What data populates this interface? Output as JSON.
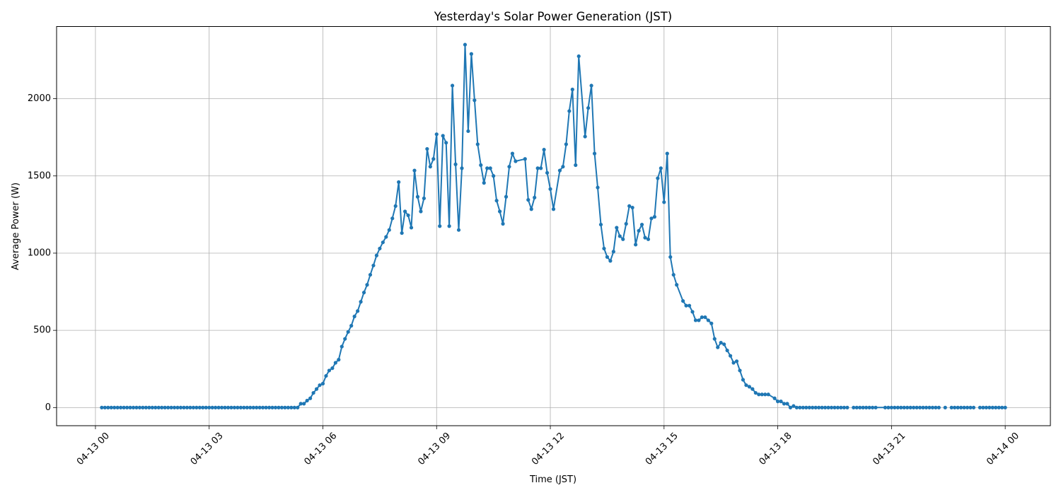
{
  "chart_data": {
    "type": "line",
    "title": "Yesterday's Solar Power Generation (JST)",
    "xlabel": "Time (JST)",
    "ylabel": "Average Power (W)",
    "x_tick_labels": [
      "04-13 00",
      "04-13 03",
      "04-13 06",
      "04-13 09",
      "04-13 12",
      "04-13 15",
      "04-13 18",
      "04-13 21",
      "04-14 00"
    ],
    "x_tick_hours": [
      0,
      3,
      6,
      9,
      12,
      15,
      18,
      21,
      24
    ],
    "y_ticks": [
      0,
      500,
      1000,
      1500,
      2000
    ],
    "ylim": [
      -117.5,
      2467.5
    ],
    "grid": true,
    "marker": "circle",
    "color": "#1f77b4",
    "series": [
      {
        "points": [
          [
            "00:10",
            0
          ],
          [
            "00:15",
            0
          ],
          [
            "00:20",
            0
          ],
          [
            "00:25",
            0
          ],
          [
            "00:30",
            0
          ],
          [
            "00:35",
            0
          ],
          [
            "00:40",
            0
          ],
          [
            "00:45",
            0
          ],
          [
            "00:50",
            0
          ],
          [
            "00:55",
            0
          ],
          [
            "01:00",
            0
          ],
          [
            "01:05",
            0
          ],
          [
            "01:10",
            0
          ],
          [
            "01:15",
            0
          ],
          [
            "01:20",
            0
          ],
          [
            "01:25",
            0
          ],
          [
            "01:30",
            0
          ],
          [
            "01:35",
            0
          ],
          [
            "01:40",
            0
          ],
          [
            "01:45",
            0
          ],
          [
            "01:50",
            0
          ],
          [
            "01:55",
            0
          ],
          [
            "02:00",
            0
          ],
          [
            "02:05",
            0
          ],
          [
            "02:10",
            0
          ],
          [
            "02:15",
            0
          ],
          [
            "02:20",
            0
          ],
          [
            "02:25",
            0
          ],
          [
            "02:30",
            0
          ],
          [
            "02:35",
            0
          ],
          [
            "02:40",
            0
          ],
          [
            "02:45",
            0
          ],
          [
            "02:50",
            0
          ],
          [
            "02:55",
            0
          ],
          [
            "03:00",
            0
          ],
          [
            "03:05",
            0
          ],
          [
            "03:10",
            0
          ],
          [
            "03:15",
            0
          ],
          [
            "03:20",
            0
          ],
          [
            "03:25",
            0
          ],
          [
            "03:30",
            0
          ],
          [
            "03:35",
            0
          ],
          [
            "03:40",
            0
          ],
          [
            "03:45",
            0
          ],
          [
            "03:50",
            0
          ],
          [
            "03:55",
            0
          ],
          [
            "04:00",
            0
          ],
          [
            "04:05",
            0
          ],
          [
            "04:10",
            0
          ],
          [
            "04:15",
            0
          ],
          [
            "04:20",
            0
          ],
          [
            "04:25",
            0
          ],
          [
            "04:30",
            0
          ],
          [
            "04:35",
            0
          ],
          [
            "04:40",
            0
          ],
          [
            "04:45",
            0
          ],
          [
            "04:50",
            0
          ],
          [
            "04:55",
            0
          ],
          [
            "05:00",
            0
          ],
          [
            "05:05",
            0
          ],
          [
            "05:10",
            0
          ],
          [
            "05:15",
            0
          ],
          [
            "05:20",
            0
          ],
          [
            "05:25",
            25
          ],
          [
            "05:30",
            25
          ],
          [
            "05:35",
            45
          ],
          [
            "05:40",
            60
          ],
          [
            "05:45",
            95
          ],
          [
            "05:50",
            120
          ],
          [
            "05:55",
            145
          ],
          [
            "06:00",
            155
          ],
          [
            "06:05",
            205
          ],
          [
            "06:10",
            240
          ],
          [
            "06:15",
            255
          ],
          [
            "06:20",
            290
          ],
          [
            "06:25",
            310
          ],
          [
            "06:30",
            395
          ],
          [
            "06:35",
            445
          ],
          [
            "06:40",
            490
          ],
          [
            "06:45",
            530
          ],
          [
            "06:50",
            590
          ],
          [
            "06:55",
            625
          ],
          [
            "07:00",
            685
          ],
          [
            "07:05",
            745
          ],
          [
            "07:10",
            795
          ],
          [
            "07:15",
            860
          ],
          [
            "07:20",
            920
          ],
          [
            "07:25",
            985
          ],
          [
            "07:30",
            1030
          ],
          [
            "07:35",
            1070
          ],
          [
            "07:40",
            1105
          ],
          [
            "07:45",
            1150
          ],
          [
            "07:50",
            1225
          ],
          [
            "07:55",
            1305
          ],
          [
            "08:00",
            1460
          ],
          [
            "08:05",
            1130
          ],
          [
            "08:10",
            1270
          ],
          [
            "08:15",
            1245
          ],
          [
            "08:20",
            1165
          ],
          [
            "08:25",
            1535
          ],
          [
            "08:30",
            1365
          ],
          [
            "08:35",
            1270
          ],
          [
            "08:40",
            1355
          ],
          [
            "08:45",
            1675
          ],
          [
            "08:50",
            1560
          ],
          [
            "08:55",
            1610
          ],
          [
            "09:00",
            1770
          ],
          [
            "09:05",
            1175
          ],
          [
            "09:10",
            1760
          ],
          [
            "09:15",
            1715
          ],
          [
            "09:20",
            1175
          ],
          [
            "09:25",
            2085
          ],
          [
            "09:30",
            1575
          ],
          [
            "09:35",
            1150
          ],
          [
            "09:40",
            1550
          ],
          [
            "09:45",
            2350
          ],
          [
            "09:50",
            1790
          ],
          [
            "09:55",
            2290
          ],
          [
            "10:00",
            1990
          ],
          [
            "10:05",
            1705
          ],
          [
            "10:10",
            1570
          ],
          [
            "10:15",
            1455
          ],
          [
            "10:20",
            1550
          ],
          [
            "10:25",
            1550
          ],
          [
            "10:30",
            1500
          ],
          [
            "10:35",
            1340
          ],
          [
            "10:40",
            1270
          ],
          [
            "10:45",
            1190
          ],
          [
            "10:50",
            1365
          ],
          [
            "10:55",
            1560
          ],
          [
            "11:00",
            1645
          ],
          [
            "11:05",
            1595
          ],
          [
            "11:20",
            1610
          ],
          [
            "11:25",
            1345
          ],
          [
            "11:30",
            1285
          ],
          [
            "11:35",
            1360
          ],
          [
            "11:40",
            1550
          ],
          [
            "11:45",
            1550
          ],
          [
            "11:50",
            1670
          ],
          [
            "11:55",
            1520
          ],
          [
            "12:00",
            1415
          ],
          [
            "12:05",
            1285
          ],
          [
            "12:15",
            1535
          ],
          [
            "12:20",
            1560
          ],
          [
            "12:25",
            1705
          ],
          [
            "12:30",
            1920
          ],
          [
            "12:35",
            2060
          ],
          [
            "12:40",
            1570
          ],
          [
            "12:45",
            2275
          ],
          [
            "12:55",
            1755
          ],
          [
            "13:00",
            1940
          ],
          [
            "13:05",
            2085
          ],
          [
            "13:10",
            1645
          ],
          [
            "13:15",
            1425
          ],
          [
            "13:20",
            1185
          ],
          [
            "13:25",
            1030
          ],
          [
            "13:30",
            975
          ],
          [
            "13:35",
            950
          ],
          [
            "13:40",
            1010
          ],
          [
            "13:45",
            1165
          ],
          [
            "13:50",
            1110
          ],
          [
            "13:55",
            1090
          ],
          [
            "14:00",
            1190
          ],
          [
            "14:05",
            1305
          ],
          [
            "14:10",
            1295
          ],
          [
            "14:15",
            1055
          ],
          [
            "14:20",
            1145
          ],
          [
            "14:25",
            1185
          ],
          [
            "14:30",
            1100
          ],
          [
            "14:35",
            1090
          ],
          [
            "14:40",
            1225
          ],
          [
            "14:45",
            1235
          ],
          [
            "14:50",
            1485
          ],
          [
            "14:55",
            1550
          ],
          [
            "15:00",
            1330
          ],
          [
            "15:05",
            1645
          ],
          [
            "15:10",
            975
          ],
          [
            "15:15",
            860
          ],
          [
            "15:20",
            795
          ],
          [
            "15:30",
            690
          ],
          [
            "15:35",
            660
          ],
          [
            "15:40",
            660
          ],
          [
            "15:45",
            620
          ],
          [
            "15:50",
            565
          ],
          [
            "15:55",
            565
          ],
          [
            "16:00",
            585
          ],
          [
            "16:05",
            585
          ],
          [
            "16:10",
            565
          ],
          [
            "16:15",
            545
          ],
          [
            "16:20",
            445
          ],
          [
            "16:25",
            390
          ],
          [
            "16:30",
            420
          ],
          [
            "16:35",
            410
          ],
          [
            "16:40",
            370
          ],
          [
            "16:45",
            335
          ],
          [
            "16:50",
            290
          ],
          [
            "16:55",
            300
          ],
          [
            "17:00",
            240
          ],
          [
            "17:05",
            180
          ],
          [
            "17:10",
            145
          ],
          [
            "17:15",
            135
          ],
          [
            "17:20",
            120
          ],
          [
            "17:25",
            95
          ],
          [
            "17:30",
            85
          ],
          [
            "17:35",
            85
          ],
          [
            "17:40",
            85
          ],
          [
            "17:45",
            85
          ],
          [
            "17:55",
            60
          ],
          [
            "18:00",
            40
          ],
          [
            "18:05",
            40
          ],
          [
            "18:10",
            25
          ],
          [
            "18:15",
            25
          ],
          [
            "18:20",
            0
          ],
          [
            "18:25",
            10
          ],
          [
            "18:30",
            0
          ],
          [
            "18:35",
            0
          ],
          [
            "18:40",
            0
          ],
          [
            "18:45",
            0
          ],
          [
            "18:50",
            0
          ],
          [
            "18:55",
            0
          ],
          [
            "19:00",
            0
          ],
          [
            "19:05",
            0
          ],
          [
            "19:10",
            0
          ],
          [
            "19:15",
            0
          ],
          [
            "19:20",
            0
          ],
          [
            "19:25",
            0
          ],
          [
            "19:30",
            0
          ],
          [
            "19:35",
            0
          ],
          [
            "19:40",
            0
          ],
          [
            "19:45",
            0
          ],
          [
            "19:50",
            0
          ],
          [
            "19:55",
            null
          ],
          [
            "20:00",
            0
          ],
          [
            "20:05",
            0
          ],
          [
            "20:10",
            0
          ],
          [
            "20:15",
            0
          ],
          [
            "20:20",
            0
          ],
          [
            "20:25",
            0
          ],
          [
            "20:30",
            0
          ],
          [
            "20:35",
            0
          ],
          [
            "20:50",
            0
          ],
          [
            "20:55",
            0
          ],
          [
            "21:00",
            0
          ],
          [
            "21:05",
            0
          ],
          [
            "21:10",
            0
          ],
          [
            "21:15",
            0
          ],
          [
            "21:20",
            0
          ],
          [
            "21:25",
            0
          ],
          [
            "21:30",
            0
          ],
          [
            "21:35",
            0
          ],
          [
            "21:40",
            0
          ],
          [
            "21:45",
            0
          ],
          [
            "21:50",
            0
          ],
          [
            "21:55",
            0
          ],
          [
            "22:00",
            0
          ],
          [
            "22:05",
            0
          ],
          [
            "22:10",
            0
          ],
          [
            "22:15",
            0
          ],
          [
            "22:20",
            null
          ],
          [
            "22:25",
            0
          ],
          [
            "22:30",
            null
          ],
          [
            "22:35",
            0
          ],
          [
            "22:40",
            0
          ],
          [
            "22:45",
            0
          ],
          [
            "22:50",
            0
          ],
          [
            "22:55",
            0
          ],
          [
            "23:00",
            0
          ],
          [
            "23:05",
            0
          ],
          [
            "23:10",
            0
          ],
          [
            "23:15",
            null
          ],
          [
            "23:20",
            0
          ],
          [
            "23:25",
            0
          ],
          [
            "23:30",
            0
          ],
          [
            "23:35",
            0
          ],
          [
            "23:40",
            0
          ],
          [
            "23:45",
            0
          ],
          [
            "23:50",
            0
          ],
          [
            "23:55",
            0
          ],
          [
            "24:00",
            0
          ]
        ]
      }
    ]
  }
}
